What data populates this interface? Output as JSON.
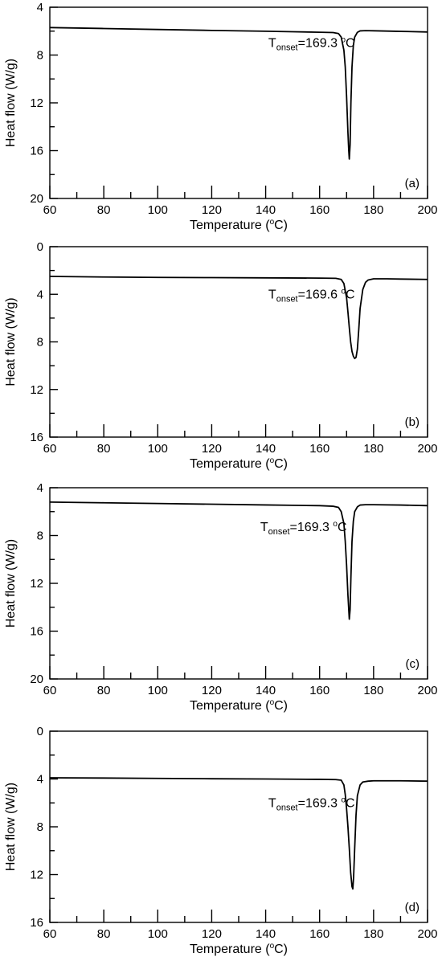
{
  "chart_data": [
    {
      "type": "line",
      "panel_label": "(a)",
      "xlabel": "Temperature (",
      "xlabel_sup": "o",
      "xlabel_tail": "C)",
      "ylabel": "Heat flow (W/g)",
      "xlim": [
        60,
        200
      ],
      "ylim": [
        4,
        20
      ],
      "y_inverted": true,
      "x_ticks": [
        60,
        80,
        100,
        120,
        140,
        160,
        180,
        200
      ],
      "x_tick_labels": [
        "60",
        "80",
        "100",
        "120",
        "140",
        "160",
        "180",
        "200"
      ],
      "y_ticks": [
        4,
        8,
        12,
        16,
        20
      ],
      "y_tick_labels": [
        "4",
        "8",
        "12",
        "16",
        "20"
      ],
      "annotation": {
        "prefix": "T",
        "sub": "onset",
        "value": "=169.3 ",
        "sup": "o",
        "unit": "C",
        "x": 141,
        "y": 7.0
      },
      "series": [
        {
          "x": [
            60,
            80,
            100,
            120,
            140,
            150,
            160,
            165,
            167,
            168,
            169,
            169.5,
            170,
            170.5,
            170.8,
            171.0,
            171.3,
            171.6,
            172.0,
            172.5,
            173,
            174,
            175,
            177,
            180,
            190,
            200
          ],
          "y": [
            5.7,
            5.78,
            5.86,
            5.94,
            6.01,
            6.05,
            6.09,
            6.12,
            6.2,
            6.5,
            7.6,
            9.0,
            11.5,
            14.5,
            16.0,
            16.7,
            15.5,
            12.0,
            9.0,
            7.2,
            6.5,
            6.1,
            5.98,
            5.96,
            5.97,
            6.02,
            6.07
          ]
        }
      ]
    },
    {
      "type": "line",
      "panel_label": "(b)",
      "xlabel": "Temperature (",
      "xlabel_sup": "o",
      "xlabel_tail": "C)",
      "ylabel": "Heat flow (W/g)",
      "xlim": [
        60,
        200
      ],
      "ylim": [
        0,
        16
      ],
      "y_inverted": true,
      "x_ticks": [
        60,
        80,
        100,
        120,
        140,
        160,
        180,
        200
      ],
      "x_tick_labels": [
        "60",
        "80",
        "100",
        "120",
        "140",
        "160",
        "180",
        "200"
      ],
      "y_ticks": [
        0,
        4,
        8,
        12,
        16
      ],
      "y_tick_labels": [
        "0",
        "4",
        "8",
        "12",
        "16"
      ],
      "annotation": {
        "prefix": "T",
        "sub": "onset",
        "value": "=169.6 ",
        "sup": "o",
        "unit": "C",
        "x": 141,
        "y": 4.0
      },
      "series": [
        {
          "x": [
            60,
            80,
            100,
            120,
            140,
            160,
            166,
            168,
            169,
            170,
            170.5,
            171,
            171.5,
            172,
            172.5,
            173,
            173.5,
            174,
            174.5,
            175,
            176,
            177,
            178,
            180,
            185,
            190,
            200
          ],
          "y": [
            2.5,
            2.55,
            2.58,
            2.6,
            2.62,
            2.64,
            2.66,
            2.75,
            3.1,
            4.3,
            5.5,
            6.8,
            8.0,
            8.8,
            9.2,
            9.4,
            9.3,
            8.6,
            7.0,
            5.2,
            3.6,
            3.0,
            2.8,
            2.7,
            2.7,
            2.72,
            2.75
          ]
        }
      ]
    },
    {
      "type": "line",
      "panel_label": "(c)",
      "xlabel": "Temperature (",
      "xlabel_sup": "o",
      "xlabel_tail": "C)",
      "ylabel": "Heat flow (W/g)",
      "xlim": [
        60,
        200
      ],
      "ylim": [
        4,
        20
      ],
      "y_inverted": true,
      "x_ticks": [
        60,
        80,
        100,
        120,
        140,
        160,
        180,
        200
      ],
      "x_tick_labels": [
        "60",
        "80",
        "100",
        "120",
        "140",
        "160",
        "180",
        "200"
      ],
      "y_ticks": [
        4,
        8,
        12,
        16,
        20
      ],
      "y_tick_labels": [
        "4",
        "8",
        "12",
        "16",
        "20"
      ],
      "annotation": {
        "prefix": "T",
        "sub": "onset",
        "value": "=169.3 ",
        "sup": "o",
        "unit": "C",
        "x": 138,
        "y": 7.3
      },
      "series": [
        {
          "x": [
            60,
            80,
            100,
            120,
            140,
            150,
            160,
            165,
            167,
            168,
            169,
            169.5,
            170,
            170.5,
            171.0,
            171.3,
            171.6,
            172.0,
            172.5,
            173,
            174,
            175,
            177,
            180,
            190,
            200
          ],
          "y": [
            5.2,
            5.26,
            5.32,
            5.38,
            5.44,
            5.47,
            5.5,
            5.55,
            5.65,
            6.0,
            7.0,
            8.5,
            10.5,
            13.0,
            15.0,
            14.2,
            11.5,
            8.5,
            6.8,
            6.0,
            5.6,
            5.45,
            5.42,
            5.42,
            5.45,
            5.5
          ]
        }
      ]
    },
    {
      "type": "line",
      "panel_label": "(d)",
      "xlabel": "Temperature (",
      "xlabel_sup": "o",
      "xlabel_tail": "C)",
      "ylabel": "Heat flow (W/g)",
      "xlim": [
        60,
        200
      ],
      "ylim": [
        0,
        16
      ],
      "y_inverted": true,
      "x_ticks": [
        60,
        80,
        100,
        120,
        140,
        160,
        180,
        200
      ],
      "x_tick_labels": [
        "60",
        "80",
        "100",
        "120",
        "140",
        "160",
        "180",
        "200"
      ],
      "y_ticks": [
        0,
        4,
        8,
        12,
        16
      ],
      "y_tick_labels": [
        "0",
        "4",
        "8",
        "12",
        "16"
      ],
      "annotation": {
        "prefix": "T",
        "sub": "onset",
        "value": "=169.3 ",
        "sup": "o",
        "unit": "C",
        "x": 141,
        "y": 6.0
      },
      "series": [
        {
          "x": [
            60,
            80,
            100,
            120,
            140,
            160,
            166,
            168,
            169,
            169.5,
            170,
            170.5,
            171,
            171.5,
            172.0,
            172.3,
            172.6,
            173.0,
            173.5,
            174,
            175,
            176,
            178,
            180,
            190,
            200
          ],
          "y": [
            3.9,
            3.92,
            3.95,
            3.98,
            4.0,
            4.03,
            4.05,
            4.1,
            4.5,
            5.3,
            6.5,
            8.0,
            9.8,
            11.8,
            13.0,
            13.2,
            12.2,
            9.8,
            7.0,
            5.4,
            4.5,
            4.25,
            4.18,
            4.15,
            4.15,
            4.18
          ]
        }
      ]
    }
  ]
}
